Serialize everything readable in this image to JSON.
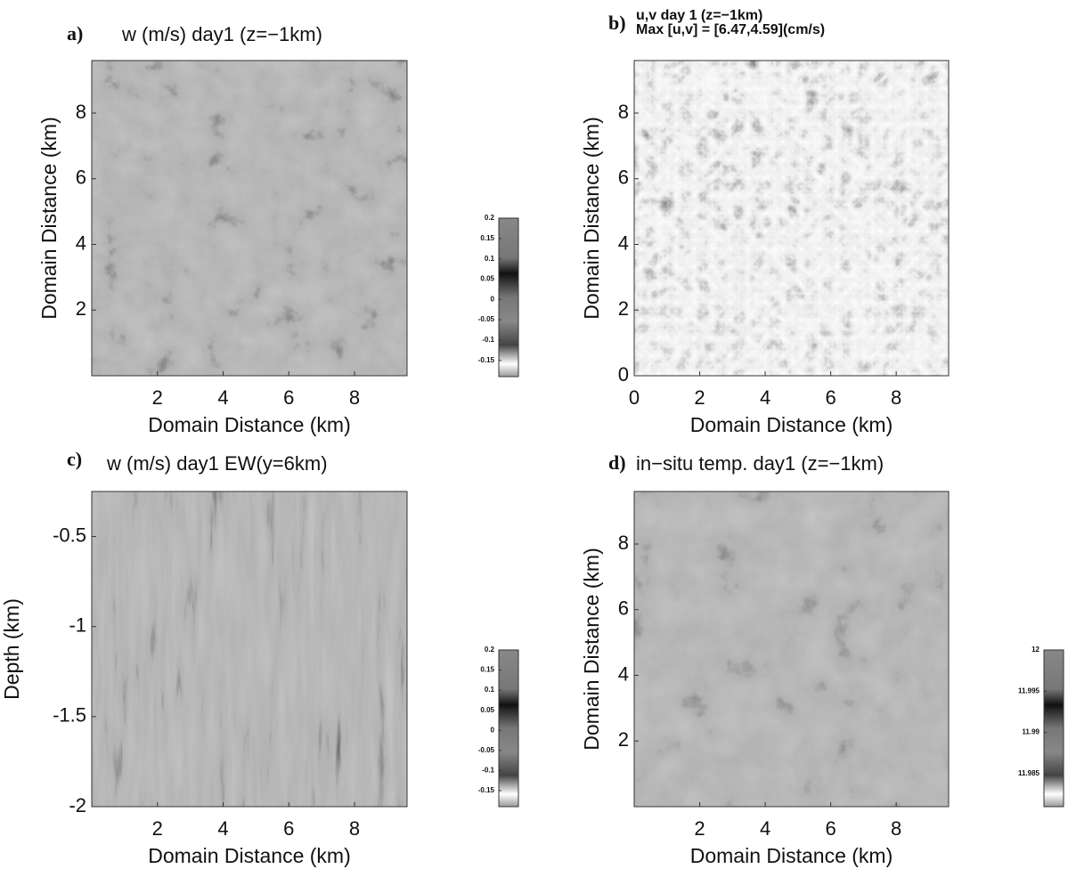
{
  "chart_data": [
    {
      "type": "heatmap",
      "panel_label": "a)",
      "title": "w (m/s) day1 (z=−1km)",
      "xlabel": "Domain Distance (km)",
      "ylabel": "Domain Distance (km)",
      "xlim": [
        0,
        9.6
      ],
      "ylim": [
        0,
        9.6
      ],
      "xticks": [
        2,
        4,
        6,
        8
      ],
      "yticks": [
        2,
        4,
        6,
        8
      ],
      "colorbar": {
        "lim": [
          -0.19,
          0.2
        ],
        "ticks": [
          0.2,
          0.15,
          0.1,
          0.05,
          0,
          -0.05,
          -0.1,
          -0.15
        ]
      }
    },
    {
      "type": "quiver",
      "panel_label": "b)",
      "title": "u,v day 1 (z=−1km)",
      "subtitle": "Max [u,v] = [6.47,4.59](cm/s)",
      "xlabel": "Domain Distance (km)",
      "ylabel": "Domain Distance (km)",
      "xlim": [
        0,
        9.6
      ],
      "ylim": [
        0,
        9.6
      ],
      "xticks": [
        0,
        2,
        4,
        6,
        8
      ],
      "yticks": [
        0,
        2,
        4,
        6,
        8
      ]
    },
    {
      "type": "heatmap",
      "panel_label": "c)",
      "title": "w (m/s) day1 EW(y=6km)",
      "xlabel": "Domain Distance (km)",
      "ylabel": "Depth (km)",
      "xlim": [
        0,
        9.6
      ],
      "ylim": [
        -2,
        -0.25
      ],
      "xticks": [
        2,
        4,
        6,
        8
      ],
      "yticks": [
        -0.5,
        -1,
        -1.5,
        -2
      ],
      "colorbar": {
        "lim": [
          -0.19,
          0.2
        ],
        "ticks": [
          0.2,
          0.15,
          0.1,
          0.05,
          0,
          -0.05,
          -0.1,
          -0.15
        ]
      }
    },
    {
      "type": "heatmap",
      "panel_label": "d)",
      "title": "in−situ temp. day1 (z=−1km)",
      "xlabel": "Domain Distance (km)",
      "ylabel": "Domain Distance (km)",
      "xlim": [
        0,
        9.6
      ],
      "ylim": [
        0,
        9.6
      ],
      "xticks": [
        2,
        4,
        6,
        8
      ],
      "yticks": [
        2,
        4,
        6,
        8
      ],
      "colorbar": {
        "lim": [
          11.981,
          12
        ],
        "ticks": [
          12,
          11.995,
          11.99,
          11.985
        ]
      }
    }
  ]
}
